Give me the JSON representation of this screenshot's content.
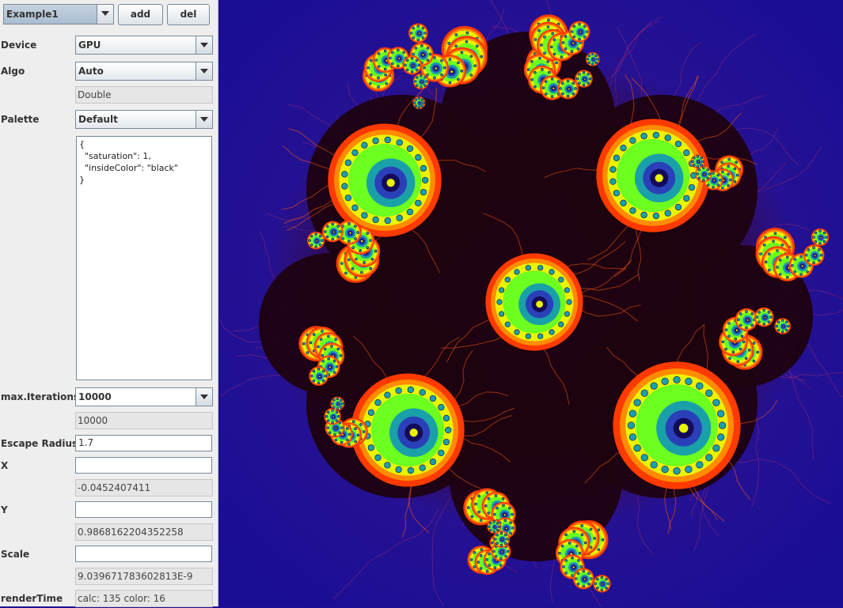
{
  "toolbar": {
    "preset": "Example1",
    "add_label": "add",
    "del_label": "del"
  },
  "device": {
    "label": "Device",
    "value": "GPU"
  },
  "algo": {
    "label": "Algo",
    "value": "Auto",
    "precision": "Double"
  },
  "palette": {
    "label": "Palette",
    "value": "Default",
    "config": "{\n  \"saturation\": 1,\n  \"insideColor\": \"black\"\n}"
  },
  "iterations": {
    "label": "max.Iterations",
    "value": "10000",
    "current": "10000"
  },
  "escape": {
    "label": "Escape Radius",
    "value": "1.7"
  },
  "x": {
    "label": "X",
    "input": "",
    "current": "-0.0452407411"
  },
  "y": {
    "label": "Y",
    "input": "",
    "current": "0.9868162204352258"
  },
  "scale": {
    "label": "Scale",
    "input": "",
    "current": "9.039671783602813E-9"
  },
  "render": {
    "label": "renderTime",
    "value": "calc: 135 color: 16"
  },
  "colors": {
    "background": "#1f0f93",
    "inside": "#1e0210",
    "halo": "#3a0f55",
    "edge": "#ff3a00",
    "orange": "#ff8c00",
    "yellow": "#e8f400",
    "green": "#6cff20",
    "teal": "#1aa0a8",
    "blue": "#2a40b8",
    "navy": "#140a5a",
    "filament": "#ff5a10"
  }
}
